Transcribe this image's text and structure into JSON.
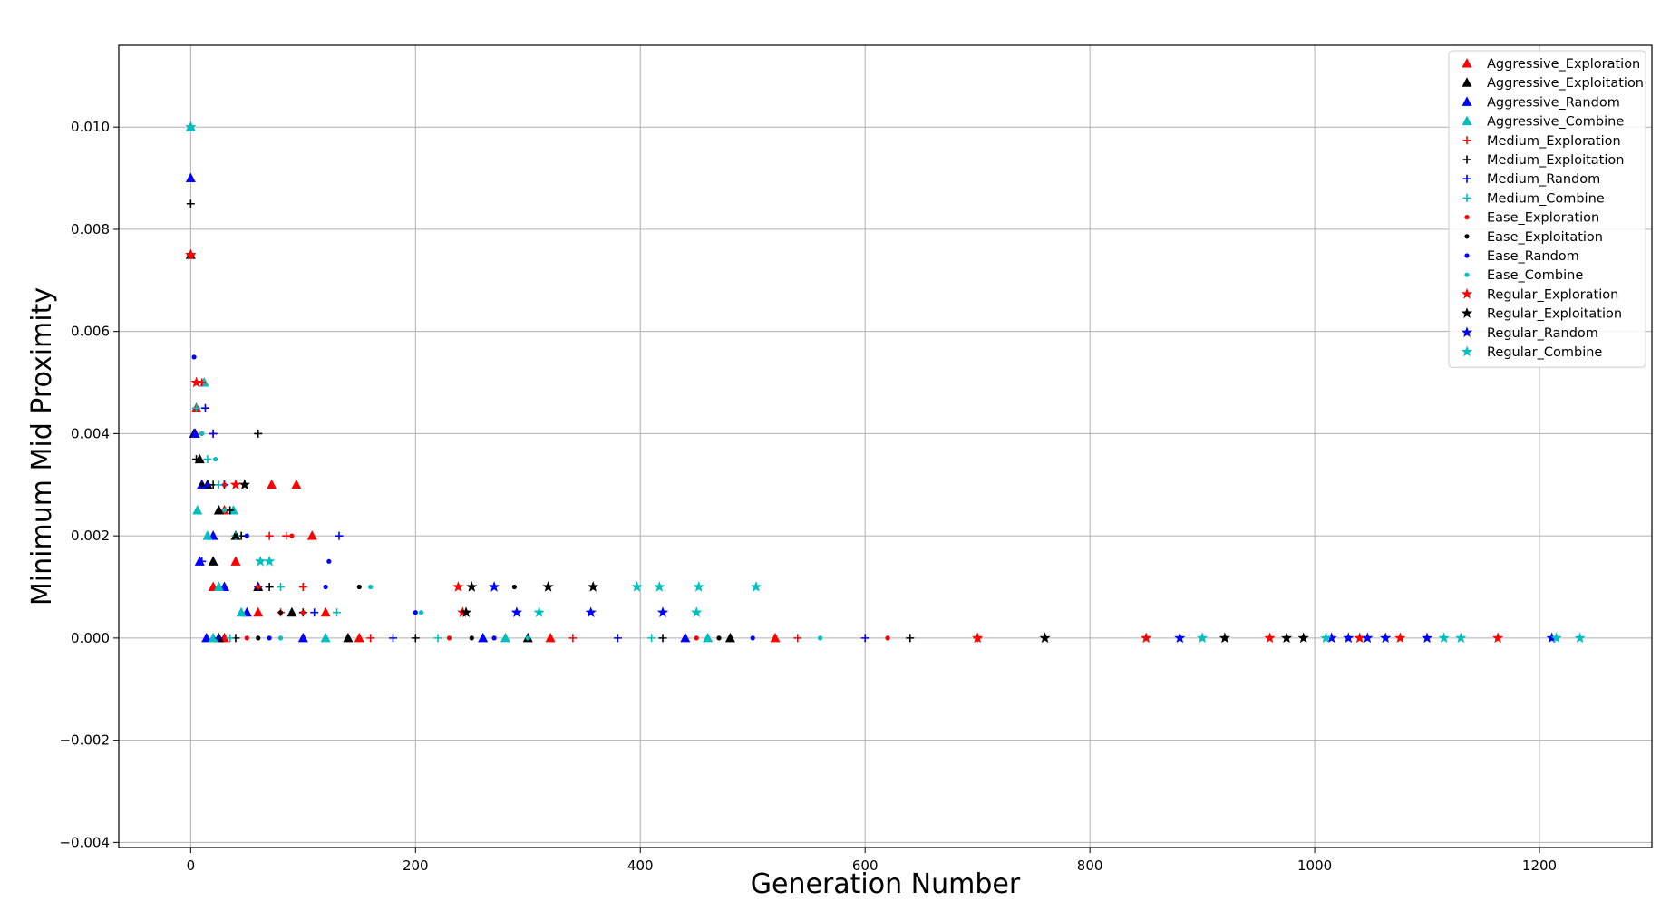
{
  "chart_data": {
    "type": "scatter",
    "title": "",
    "xlabel": "Generation Number",
    "ylabel": "Minimum Mid Proximity",
    "xlim": [
      -64,
      1300
    ],
    "ylim": [
      -0.0041,
      0.0116
    ],
    "x_ticks": [
      0,
      200,
      400,
      600,
      800,
      1000,
      1200
    ],
    "x_tick_labels": [
      "0",
      "200",
      "400",
      "600",
      "800",
      "1000",
      "1200"
    ],
    "y_ticks": [
      -0.004,
      -0.002,
      0.0,
      0.002,
      0.004,
      0.006,
      0.008,
      0.01
    ],
    "y_tick_labels": [
      "−0.004",
      "−0.002",
      "0.000",
      "0.002",
      "0.004",
      "0.006",
      "0.008",
      "0.010"
    ],
    "grid": true,
    "legend_position": "top-right",
    "series": [
      {
        "name": "Aggressive_Exploration",
        "color": "#ff0000",
        "marker": "triangle",
        "points": [
          [
            0,
            0.01
          ],
          [
            5,
            0.0045
          ],
          [
            10,
            0.003
          ],
          [
            30,
            0.0025
          ],
          [
            72,
            0.003
          ],
          [
            94,
            0.003
          ],
          [
            108,
            0.002
          ],
          [
            40,
            0.0015
          ],
          [
            20,
            0.001
          ],
          [
            60,
            0.0005
          ],
          [
            120,
            0.0005
          ],
          [
            30,
            0.0
          ],
          [
            150,
            0.0
          ],
          [
            320,
            0.0
          ],
          [
            520,
            0.0
          ]
        ]
      },
      {
        "name": "Aggressive_Exploitation",
        "color": "#000000",
        "marker": "triangle",
        "points": [
          [
            0,
            0.0075
          ],
          [
            3,
            0.004
          ],
          [
            8,
            0.0035
          ],
          [
            15,
            0.003
          ],
          [
            25,
            0.0025
          ],
          [
            40,
            0.002
          ],
          [
            20,
            0.0015
          ],
          [
            60,
            0.001
          ],
          [
            90,
            0.0005
          ],
          [
            25,
            0.0
          ],
          [
            140,
            0.0
          ],
          [
            300,
            0.0
          ],
          [
            480,
            0.0
          ]
        ]
      },
      {
        "name": "Aggressive_Random",
        "color": "#0000ff",
        "marker": "triangle",
        "points": [
          [
            0,
            0.009
          ],
          [
            4,
            0.004
          ],
          [
            10,
            0.003
          ],
          [
            20,
            0.002
          ],
          [
            8,
            0.0015
          ],
          [
            30,
            0.001
          ],
          [
            50,
            0.0005
          ],
          [
            14,
            0.0
          ],
          [
            100,
            0.0
          ],
          [
            260,
            0.0
          ],
          [
            440,
            0.0
          ]
        ]
      },
      {
        "name": "Aggressive_Combine",
        "color": "#00bfbf",
        "marker": "triangle",
        "points": [
          [
            0,
            0.01
          ],
          [
            12,
            0.005
          ],
          [
            38,
            0.0025
          ],
          [
            6,
            0.0025
          ],
          [
            15,
            0.002
          ],
          [
            25,
            0.001
          ],
          [
            45,
            0.0005
          ],
          [
            20,
            0.0
          ],
          [
            120,
            0.0
          ],
          [
            280,
            0.0
          ],
          [
            460,
            0.0
          ]
        ]
      },
      {
        "name": "Medium_Exploration",
        "color": "#ff0000",
        "marker": "plus",
        "points": [
          [
            0,
            0.0075
          ],
          [
            10,
            0.005
          ],
          [
            20,
            0.004
          ],
          [
            30,
            0.003
          ],
          [
            70,
            0.002
          ],
          [
            85,
            0.002
          ],
          [
            100,
            0.001
          ],
          [
            80,
            0.0005
          ],
          [
            30,
            0.0
          ],
          [
            160,
            0.0
          ],
          [
            340,
            0.0
          ],
          [
            540,
            0.0
          ],
          [
            700,
            0.0
          ]
        ]
      },
      {
        "name": "Medium_Exploitation",
        "color": "#000000",
        "marker": "plus",
        "points": [
          [
            0,
            0.0085
          ],
          [
            5,
            0.0035
          ],
          [
            60,
            0.004
          ],
          [
            20,
            0.003
          ],
          [
            35,
            0.0025
          ],
          [
            45,
            0.002
          ],
          [
            70,
            0.001
          ],
          [
            100,
            0.0005
          ],
          [
            40,
            0.0
          ],
          [
            200,
            0.0
          ],
          [
            420,
            0.0
          ],
          [
            640,
            0.0
          ]
        ]
      },
      {
        "name": "Medium_Random",
        "color": "#0000ff",
        "marker": "plus",
        "points": [
          [
            13,
            0.0045
          ],
          [
            20,
            0.004
          ],
          [
            30,
            0.003
          ],
          [
            132,
            0.002
          ],
          [
            10,
            0.0015
          ],
          [
            60,
            0.001
          ],
          [
            110,
            0.0005
          ],
          [
            25,
            0.0
          ],
          [
            180,
            0.0
          ],
          [
            380,
            0.0
          ],
          [
            600,
            0.0
          ]
        ]
      },
      {
        "name": "Medium_Combine",
        "color": "#00bfbf",
        "marker": "plus",
        "points": [
          [
            5,
            0.0045
          ],
          [
            15,
            0.0035
          ],
          [
            25,
            0.003
          ],
          [
            40,
            0.002
          ],
          [
            80,
            0.001
          ],
          [
            130,
            0.0005
          ],
          [
            35,
            0.0
          ],
          [
            220,
            0.0
          ],
          [
            410,
            0.0
          ]
        ]
      },
      {
        "name": "Ease_Exploration",
        "color": "#ff0000",
        "marker": "dot",
        "points": [
          [
            90,
            0.002
          ],
          [
            10,
            0.004
          ],
          [
            30,
            0.003
          ],
          [
            60,
            0.001
          ],
          [
            100,
            0.0005
          ],
          [
            50,
            0.0
          ],
          [
            230,
            0.0
          ],
          [
            450,
            0.0
          ],
          [
            620,
            0.0
          ]
        ]
      },
      {
        "name": "Ease_Exploitation",
        "color": "#000000",
        "marker": "dot",
        "points": [
          [
            288,
            0.001
          ],
          [
            10,
            0.003
          ],
          [
            40,
            0.002
          ],
          [
            150,
            0.001
          ],
          [
            80,
            0.0005
          ],
          [
            60,
            0.0
          ],
          [
            250,
            0.0
          ],
          [
            470,
            0.0
          ]
        ]
      },
      {
        "name": "Ease_Random",
        "color": "#0000ff",
        "marker": "dot",
        "points": [
          [
            3,
            0.0055
          ],
          [
            123,
            0.0015
          ],
          [
            15,
            0.003
          ],
          [
            50,
            0.002
          ],
          [
            120,
            0.001
          ],
          [
            200,
            0.0005
          ],
          [
            70,
            0.0
          ],
          [
            270,
            0.0
          ],
          [
            500,
            0.0
          ]
        ]
      },
      {
        "name": "Ease_Combine",
        "color": "#00bfbf",
        "marker": "dot",
        "points": [
          [
            22,
            0.0035
          ],
          [
            10,
            0.004
          ],
          [
            30,
            0.0025
          ],
          [
            160,
            0.001
          ],
          [
            205,
            0.0005
          ],
          [
            80,
            0.0
          ],
          [
            300,
            0.0
          ],
          [
            560,
            0.0
          ]
        ]
      },
      {
        "name": "Regular_Exploration",
        "color": "#ff0000",
        "marker": "star",
        "points": [
          [
            0,
            0.0075
          ],
          [
            5,
            0.005
          ],
          [
            40,
            0.003
          ],
          [
            238,
            0.001
          ],
          [
            242,
            0.0005
          ],
          [
            960,
            0.0
          ],
          [
            1040,
            0.0
          ],
          [
            1076,
            0.0
          ],
          [
            1163,
            0.0
          ],
          [
            850,
            0.0
          ],
          [
            700,
            0.0
          ]
        ]
      },
      {
        "name": "Regular_Exploitation",
        "color": "#000000",
        "marker": "star",
        "points": [
          [
            48,
            0.003
          ],
          [
            250,
            0.001
          ],
          [
            318,
            0.001
          ],
          [
            358,
            0.001
          ],
          [
            245,
            0.0005
          ],
          [
            975,
            0.0
          ],
          [
            990,
            0.0
          ],
          [
            920,
            0.0
          ],
          [
            760,
            0.0
          ]
        ]
      },
      {
        "name": "Regular_Random",
        "color": "#0000ff",
        "marker": "star",
        "points": [
          [
            270,
            0.001
          ],
          [
            290,
            0.0005
          ],
          [
            356,
            0.0005
          ],
          [
            420,
            0.0005
          ],
          [
            1015,
            0.0
          ],
          [
            1030,
            0.0
          ],
          [
            1047,
            0.0
          ],
          [
            1063,
            0.0
          ],
          [
            1100,
            0.0
          ],
          [
            1211,
            0.0
          ],
          [
            880,
            0.0
          ]
        ]
      },
      {
        "name": "Regular_Combine",
        "color": "#00bfbf",
        "marker": "star",
        "points": [
          [
            0,
            0.01
          ],
          [
            62,
            0.0015
          ],
          [
            70,
            0.0015
          ],
          [
            397,
            0.001
          ],
          [
            417,
            0.001
          ],
          [
            452,
            0.001
          ],
          [
            503,
            0.001
          ],
          [
            310,
            0.0005
          ],
          [
            450,
            0.0005
          ],
          [
            1010,
            0.0
          ],
          [
            1130,
            0.0
          ],
          [
            1236,
            0.0
          ],
          [
            1215,
            0.0
          ],
          [
            1115,
            0.0
          ],
          [
            900,
            0.0
          ]
        ]
      }
    ]
  }
}
